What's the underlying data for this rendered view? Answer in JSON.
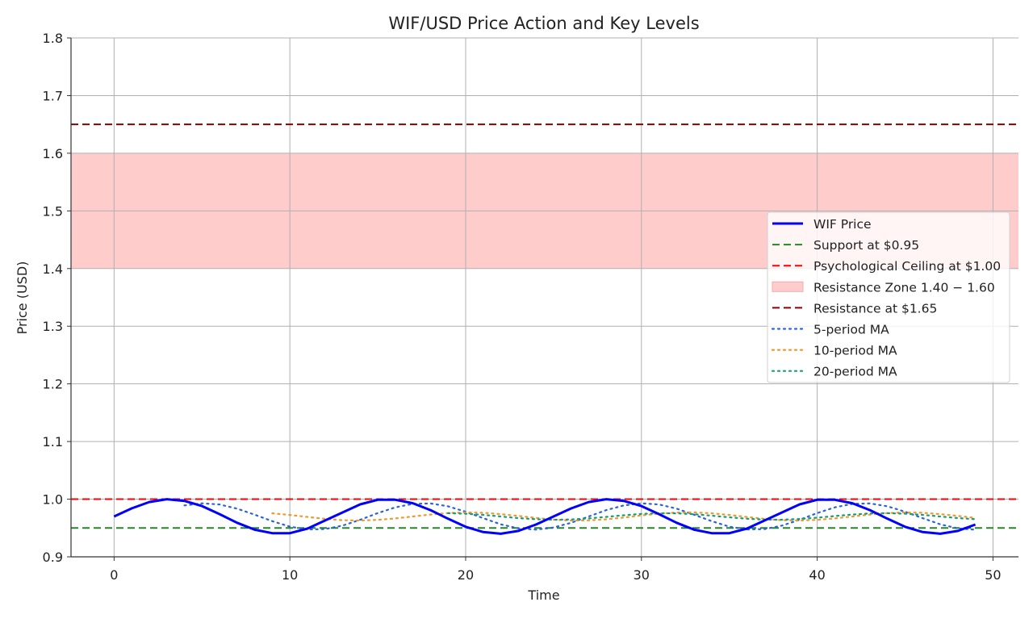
{
  "chart_data": {
    "type": "line",
    "title": "WIF/USD Price Action and Key Levels",
    "xlabel": "Time",
    "ylabel": "Price (USD)",
    "xlim": [
      -2.45,
      51.45
    ],
    "ylim": [
      0.9,
      1.8
    ],
    "xticks": [
      0,
      10,
      20,
      30,
      40,
      50
    ],
    "yticks": [
      0.9,
      1.0,
      1.1,
      1.2,
      1.3,
      1.4,
      1.5,
      1.6,
      1.7,
      1.8
    ],
    "ytick_labels": [
      "0.9",
      "1.0",
      "1.1",
      "1.2",
      "1.3",
      "1.4",
      "1.5",
      "1.6",
      "1.7",
      "1.8"
    ],
    "grid": true,
    "legend_position": "center-right",
    "price": {
      "name": "WIF Price",
      "color": "#0000ff",
      "x": [
        0,
        1,
        2,
        3,
        4,
        5,
        6,
        7,
        8,
        9,
        10,
        11,
        12,
        13,
        14,
        15,
        16,
        17,
        18,
        19,
        20,
        21,
        22,
        23,
        24,
        25,
        26,
        27,
        28,
        29,
        30,
        31,
        32,
        33,
        34,
        35,
        36,
        37,
        38,
        39,
        40,
        41,
        42,
        43,
        44,
        45,
        46,
        47,
        48,
        49
      ],
      "values": [
        0.97,
        0.984,
        0.995,
        1.0,
        0.997,
        0.988,
        0.974,
        0.959,
        0.947,
        0.941,
        0.941,
        0.949,
        0.963,
        0.977,
        0.991,
        0.999,
        0.999,
        0.993,
        0.981,
        0.966,
        0.952,
        0.943,
        0.94,
        0.945,
        0.956,
        0.97,
        0.984,
        0.995,
        1.0,
        0.997,
        0.988,
        0.974,
        0.959,
        0.947,
        0.941,
        0.941,
        0.949,
        0.963,
        0.977,
        0.991,
        0.999,
        0.999,
        0.993,
        0.981,
        0.966,
        0.952,
        0.943,
        0.94,
        0.945,
        0.956
      ]
    },
    "levels": [
      {
        "name": "Support at $0.95",
        "value": 0.95,
        "color": "#228b22"
      },
      {
        "name": "Psychological Ceiling at $1.00",
        "value": 1.0,
        "color": "#ff0000"
      },
      {
        "name": "Resistance at $1.65",
        "value": 1.65,
        "color": "#8b0000"
      }
    ],
    "zone": {
      "name": "Resistance Zone 1.40 − 1.60",
      "low": 1.4,
      "high": 1.6,
      "color": "#ffcccc"
    },
    "moving_averages": [
      {
        "name": "5-period MA",
        "window": 5,
        "color": "#2b63dd"
      },
      {
        "name": "10-period MA",
        "window": 10,
        "color": "#f0982a"
      },
      {
        "name": "20-period MA",
        "window": 20,
        "color": "#149e74"
      }
    ],
    "legend": [
      "WIF Price",
      "Support at $0.95",
      "Psychological Ceiling at $1.00",
      "Resistance Zone 1.40 − 1.60",
      "Resistance at $1.65",
      "5-period MA",
      "10-period MA",
      "20-period MA"
    ]
  }
}
